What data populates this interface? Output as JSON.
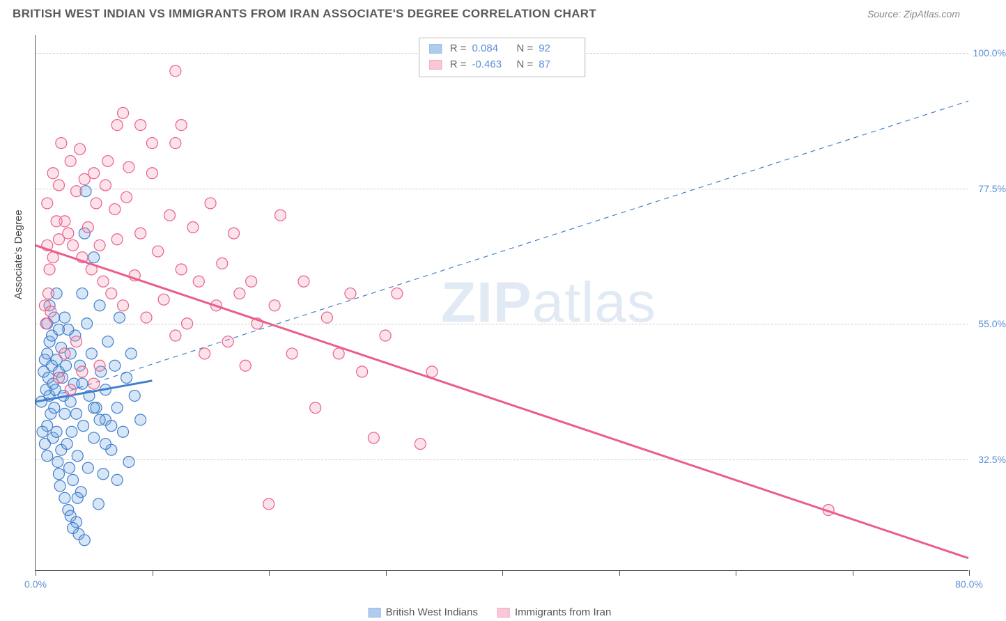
{
  "header": {
    "title": "BRITISH WEST INDIAN VS IMMIGRANTS FROM IRAN ASSOCIATE'S DEGREE CORRELATION CHART",
    "source": "Source: ZipAtlas.com"
  },
  "y_axis_title": "Associate's Degree",
  "watermark": {
    "bold": "ZIP",
    "light": "atlas"
  },
  "chart": {
    "type": "scatter",
    "xlim": [
      0,
      80
    ],
    "ylim": [
      14,
      103
    ],
    "x_ticks": [
      0,
      10,
      20,
      30,
      40,
      50,
      60,
      70,
      80
    ],
    "x_tick_labels": {
      "0": "0.0%",
      "80": "80.0%"
    },
    "y_ticks": [
      32.5,
      55.0,
      77.5,
      100.0
    ],
    "y_tick_labels": [
      "32.5%",
      "55.0%",
      "77.5%",
      "100.0%"
    ],
    "grid_color": "#cccccc",
    "background_color": "#ffffff",
    "marker_radius": 8,
    "marker_fill_opacity": 0.28,
    "marker_stroke_width": 1.2,
    "series": [
      {
        "name": "British West Indians",
        "color_fill": "#6ea4e0",
        "color_stroke": "#3f7fce",
        "R": "0.084",
        "N": "92",
        "trend_solid": {
          "x1": 0,
          "y1": 42.0,
          "x2": 10,
          "y2": 45.5,
          "width": 3
        },
        "trend_dashed": {
          "x1": 0,
          "y1": 42.0,
          "x2": 80,
          "y2": 92.0,
          "dash": "7,6",
          "width": 1.2
        },
        "points": [
          [
            0.5,
            42
          ],
          [
            0.7,
            47
          ],
          [
            0.8,
            49
          ],
          [
            0.9,
            44
          ],
          [
            1.0,
            50
          ],
          [
            1.0,
            38
          ],
          [
            1.1,
            46
          ],
          [
            1.2,
            43
          ],
          [
            1.2,
            52
          ],
          [
            1.3,
            40
          ],
          [
            1.4,
            48
          ],
          [
            1.5,
            45
          ],
          [
            1.5,
            36
          ],
          [
            1.6,
            41
          ],
          [
            1.7,
            44
          ],
          [
            1.8,
            49
          ],
          [
            1.8,
            37
          ],
          [
            1.9,
            32
          ],
          [
            2.0,
            47
          ],
          [
            2.0,
            30
          ],
          [
            2.1,
            28
          ],
          [
            2.2,
            34
          ],
          [
            2.2,
            51
          ],
          [
            2.3,
            46
          ],
          [
            2.4,
            43
          ],
          [
            2.5,
            26
          ],
          [
            2.5,
            40
          ],
          [
            2.6,
            48
          ],
          [
            2.7,
            35
          ],
          [
            2.8,
            24
          ],
          [
            2.9,
            31
          ],
          [
            3.0,
            50
          ],
          [
            3.0,
            42
          ],
          [
            3.1,
            37
          ],
          [
            3.2,
            29
          ],
          [
            3.3,
            45
          ],
          [
            3.4,
            53
          ],
          [
            3.5,
            40
          ],
          [
            3.5,
            22
          ],
          [
            3.6,
            33
          ],
          [
            3.8,
            48
          ],
          [
            3.9,
            27
          ],
          [
            4.0,
            60
          ],
          [
            4.0,
            45
          ],
          [
            4.1,
            38
          ],
          [
            4.2,
            70
          ],
          [
            4.3,
            77
          ],
          [
            4.4,
            55
          ],
          [
            4.5,
            31
          ],
          [
            4.6,
            43
          ],
          [
            4.8,
            50
          ],
          [
            5.0,
            36
          ],
          [
            5.0,
            66
          ],
          [
            5.2,
            41
          ],
          [
            5.4,
            25
          ],
          [
            5.5,
            58
          ],
          [
            5.6,
            47
          ],
          [
            5.8,
            30
          ],
          [
            6.0,
            44
          ],
          [
            6.0,
            39
          ],
          [
            6.2,
            52
          ],
          [
            6.5,
            34
          ],
          [
            6.8,
            48
          ],
          [
            7.0,
            41
          ],
          [
            7.0,
            29
          ],
          [
            7.2,
            56
          ],
          [
            7.5,
            37
          ],
          [
            7.8,
            46
          ],
          [
            8.0,
            32
          ],
          [
            8.2,
            50
          ],
          [
            8.5,
            43
          ],
          [
            9.0,
            39
          ],
          [
            1.0,
            55
          ],
          [
            1.2,
            58
          ],
          [
            1.4,
            53
          ],
          [
            1.6,
            56
          ],
          [
            1.8,
            60
          ],
          [
            2.0,
            54
          ],
          [
            0.6,
            37
          ],
          [
            0.8,
            35
          ],
          [
            1.0,
            33
          ],
          [
            3.7,
            20
          ],
          [
            4.2,
            19
          ],
          [
            5.0,
            41
          ],
          [
            5.5,
            39
          ],
          [
            6.0,
            35
          ],
          [
            6.5,
            38
          ],
          [
            2.5,
            56
          ],
          [
            2.8,
            54
          ],
          [
            3.0,
            23
          ],
          [
            3.2,
            21
          ],
          [
            3.6,
            26
          ]
        ]
      },
      {
        "name": "Immigrants from Iran",
        "color_fill": "#f59bb5",
        "color_stroke": "#ea5e8a",
        "R": "-0.463",
        "N": "87",
        "trend_solid": {
          "x1": 0,
          "y1": 68.0,
          "x2": 80,
          "y2": 16.0,
          "width": 3
        },
        "points": [
          [
            1.0,
            75
          ],
          [
            1.5,
            80
          ],
          [
            2.0,
            78
          ],
          [
            2.2,
            85
          ],
          [
            2.5,
            72
          ],
          [
            2.8,
            70
          ],
          [
            3.0,
            82
          ],
          [
            3.2,
            68
          ],
          [
            3.5,
            77
          ],
          [
            3.8,
            84
          ],
          [
            4.0,
            66
          ],
          [
            4.2,
            79
          ],
          [
            4.5,
            71
          ],
          [
            4.8,
            64
          ],
          [
            5.0,
            80
          ],
          [
            5.2,
            75
          ],
          [
            5.5,
            68
          ],
          [
            5.8,
            62
          ],
          [
            6.0,
            78
          ],
          [
            6.2,
            82
          ],
          [
            6.5,
            60
          ],
          [
            6.8,
            74
          ],
          [
            7.0,
            69
          ],
          [
            7.5,
            58
          ],
          [
            7.8,
            76
          ],
          [
            8.0,
            81
          ],
          [
            8.5,
            63
          ],
          [
            9.0,
            70
          ],
          [
            9.5,
            56
          ],
          [
            10.0,
            80
          ],
          [
            10.5,
            67
          ],
          [
            11.0,
            59
          ],
          [
            11.5,
            73
          ],
          [
            12.0,
            97
          ],
          [
            12.5,
            64
          ],
          [
            13.0,
            55
          ],
          [
            13.5,
            71
          ],
          [
            14.0,
            62
          ],
          [
            14.5,
            50
          ],
          [
            15.0,
            75
          ],
          [
            15.5,
            58
          ],
          [
            16.0,
            65
          ],
          [
            16.5,
            52
          ],
          [
            17.0,
            70
          ],
          [
            17.5,
            60
          ],
          [
            18.0,
            48
          ],
          [
            18.5,
            62
          ],
          [
            19.0,
            55
          ],
          [
            20.0,
            25
          ],
          [
            20.5,
            58
          ],
          [
            21.0,
            73
          ],
          [
            22.0,
            50
          ],
          [
            23.0,
            62
          ],
          [
            24.0,
            41
          ],
          [
            25.0,
            56
          ],
          [
            26.0,
            50
          ],
          [
            27.0,
            60
          ],
          [
            28.0,
            47
          ],
          [
            29.0,
            36
          ],
          [
            30.0,
            53
          ],
          [
            2.0,
            46
          ],
          [
            2.5,
            50
          ],
          [
            3.0,
            44
          ],
          [
            3.5,
            52
          ],
          [
            4.0,
            47
          ],
          [
            1.0,
            68
          ],
          [
            1.2,
            64
          ],
          [
            1.5,
            66
          ],
          [
            1.8,
            72
          ],
          [
            2.0,
            69
          ],
          [
            0.8,
            58
          ],
          [
            0.9,
            55
          ],
          [
            1.1,
            60
          ],
          [
            1.3,
            57
          ],
          [
            7.0,
            88
          ],
          [
            7.5,
            90
          ],
          [
            5.0,
            45
          ],
          [
            5.5,
            48
          ],
          [
            9.0,
            88
          ],
          [
            10.0,
            85
          ],
          [
            12.0,
            53
          ],
          [
            31.0,
            60
          ],
          [
            33.0,
            35
          ],
          [
            34.0,
            47
          ],
          [
            68.0,
            24
          ],
          [
            12.0,
            85
          ],
          [
            12.5,
            88
          ]
        ]
      }
    ]
  },
  "bottom_legend": [
    {
      "label": "British West Indians",
      "fill": "#6ea4e0",
      "stroke": "#3f7fce"
    },
    {
      "label": "Immigrants from Iran",
      "fill": "#f59bb5",
      "stroke": "#ea5e8a"
    }
  ]
}
